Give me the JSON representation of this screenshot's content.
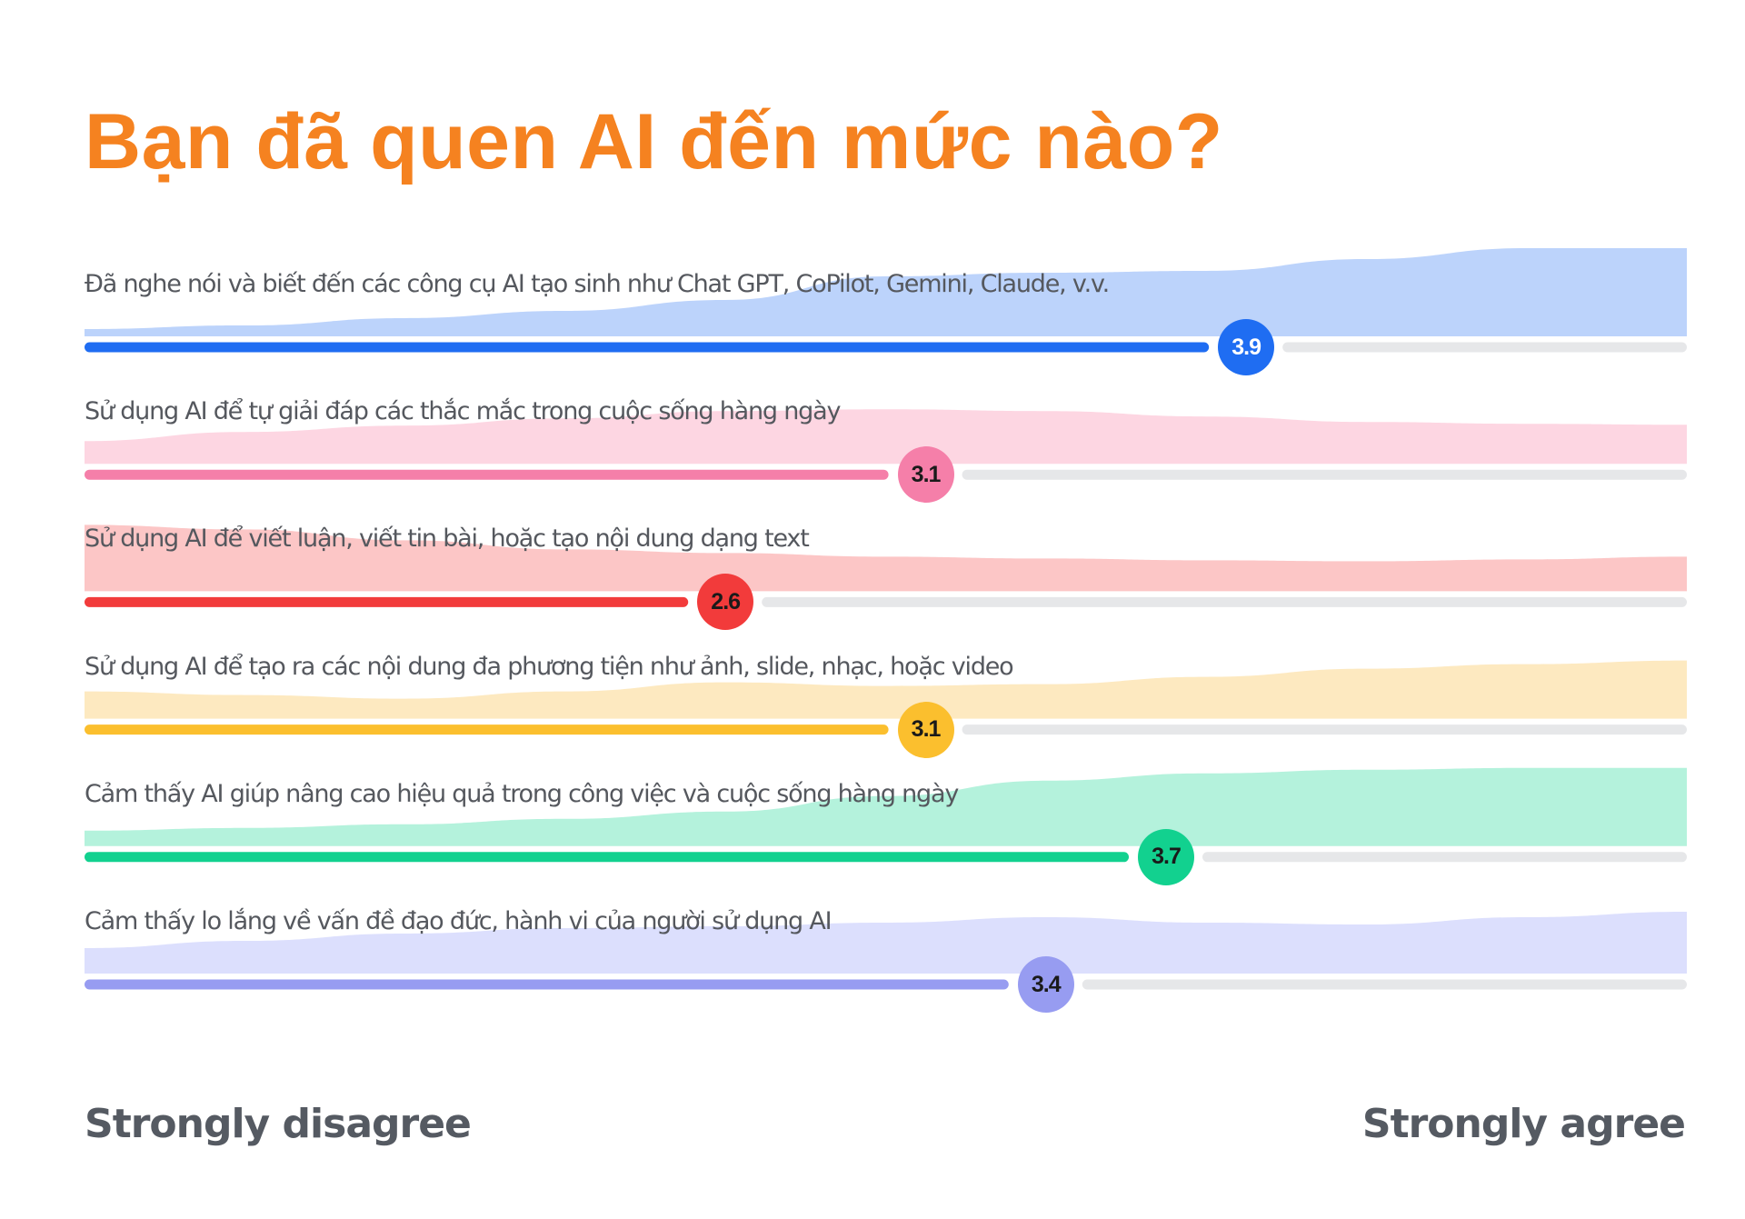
{
  "title": "Bạn đã quen AI đến mức nào?",
  "axis": {
    "min_label": "Strongly disagree",
    "max_label": "Strongly agree"
  },
  "colors": {
    "title": "#f58220",
    "track": "#e6e7e9",
    "label_text": "#55585e"
  },
  "chart_data": {
    "type": "bar",
    "title": "Bạn đã quen AI đến mức nào?",
    "xlabel": "",
    "ylabel": "",
    "xlim": [
      1,
      5
    ],
    "x_min_label": "Strongly disagree",
    "x_max_label": "Strongly agree",
    "grid": false,
    "legend": "none",
    "categories": [
      "Đã nghe nói và biết đến các công cụ AI tạo sinh như Chat GPT, CoPilot, Gemini, Claude, v.v.",
      "Sử dụng AI để tự giải đáp các thắc mắc trong cuộc sống hàng ngày",
      "Sử dụng AI để viết luận, viết tin bài, hoặc tạo nội dung dạng text",
      "Sử dụng AI để tạo ra các nội dung đa phương tiện như ảnh, slide, nhạc, hoặc video",
      "Cảm thấy AI giúp nâng cao hiệu quả trong công việc và cuộc sống hàng ngày",
      "Cảm thấy lo lắng về vấn đề đạo đức, hành vi của người sử dụng AI"
    ],
    "values": [
      3.9,
      3.1,
      2.6,
      3.1,
      3.7,
      3.4
    ],
    "value_labels": [
      "3.9",
      "3.1",
      "2.6",
      "3.1",
      "3.7",
      "3.4"
    ]
  },
  "rows": [
    {
      "label": "Đã nghe nói và biết đến các công cụ AI tạo sinh như Chat GPT, CoPilot, Gemini, Claude, v.v.",
      "value": 3.9,
      "value_label": "3.9",
      "bar_color": "#1f6df2",
      "area_color": "#bcd3fb",
      "bubble_text_color": "#ffffff",
      "distribution": [
        8,
        12,
        20,
        28,
        40,
        66,
        70,
        72,
        85,
        97,
        97
      ]
    },
    {
      "label": "Sử dụng AI để tự giải đáp các thắc mắc trong cuộc sống hàng ngày",
      "value": 3.1,
      "value_label": "3.1",
      "bar_color": "#f57fa9",
      "area_color": "#fdd6e2",
      "bubble_text_color": "#1a1a1a",
      "distribution": [
        25,
        35,
        42,
        50,
        58,
        60,
        58,
        52,
        46,
        44,
        43
      ]
    },
    {
      "label": "Sử dụng AI để viết luận, viết tin bài, hoặc tạo nội dung dạng text",
      "value": 2.6,
      "value_label": "2.6",
      "bar_color": "#f23b3b",
      "area_color": "#fcc6c6",
      "bubble_text_color": "#1a1a1a",
      "distribution": [
        73,
        68,
        56,
        46,
        42,
        38,
        36,
        34,
        33,
        35,
        38
      ]
    },
    {
      "label": "Sử dụng AI để tạo ra các nội dung đa phương tiện như ảnh, slide, nhạc, hoặc video",
      "value": 3.1,
      "value_label": "3.1",
      "bar_color": "#fbbf2e",
      "area_color": "#fde9c0",
      "bubble_text_color": "#1a1a1a",
      "distribution": [
        30,
        26,
        22,
        30,
        40,
        36,
        38,
        46,
        55,
        60,
        64
      ]
    },
    {
      "label": "Cảm thấy AI giúp nâng cao hiệu quả trong công việc và cuộc sống hàng ngày",
      "value": 3.7,
      "value_label": "3.7",
      "bar_color": "#12d18f",
      "area_color": "#b4f2dc",
      "bubble_text_color": "#1a1a1a",
      "distribution": [
        17,
        20,
        24,
        30,
        38,
        55,
        72,
        80,
        84,
        86,
        86
      ]
    },
    {
      "label": "Cảm thấy lo lắng về vấn đề đạo đức, hành vi của người sử dụng AI",
      "value": 3.4,
      "value_label": "3.4",
      "bar_color": "#979cf1",
      "area_color": "#dcdffd",
      "bubble_text_color": "#1a1a1a",
      "distribution": [
        28,
        36,
        44,
        50,
        52,
        56,
        62,
        56,
        54,
        62,
        68
      ]
    }
  ]
}
